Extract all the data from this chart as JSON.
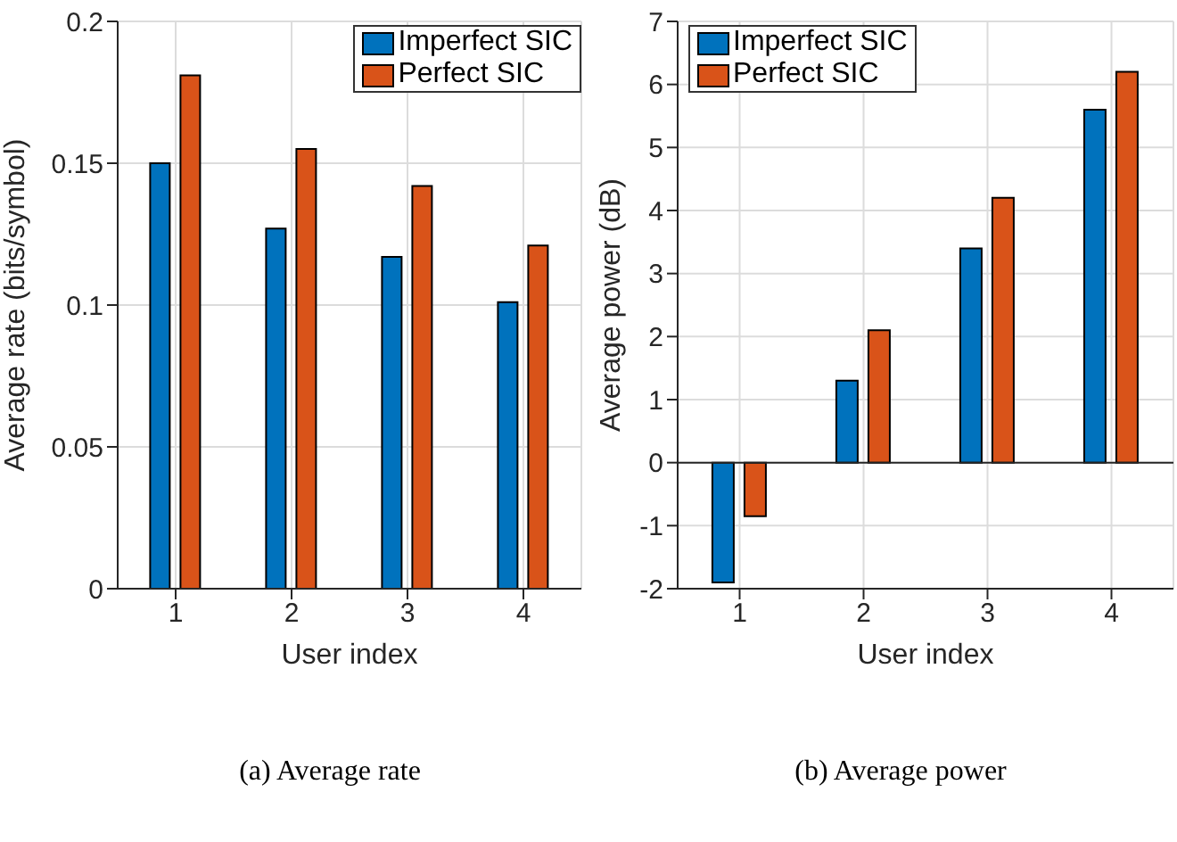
{
  "chart_data": [
    {
      "type": "bar",
      "xlabel": "User index",
      "ylabel": "Average rate (bits/symbol)",
      "categories": [
        "1",
        "2",
        "3",
        "4"
      ],
      "series": [
        {
          "name": "Imperfect SIC",
          "color": "#0072bd",
          "values": [
            0.15,
            0.127,
            0.117,
            0.101
          ]
        },
        {
          "name": "Perfect SIC",
          "color": "#d95319",
          "values": [
            0.181,
            0.155,
            0.142,
            0.121
          ]
        }
      ],
      "ylim": [
        0,
        0.2
      ],
      "yticks": [
        0,
        0.05,
        0.1,
        0.15,
        0.2
      ],
      "grid": true,
      "legend": "top right",
      "annotations": [
        "(a) Average rate"
      ]
    },
    {
      "type": "bar",
      "xlabel": "User index",
      "ylabel": "Average power (dB)",
      "categories": [
        "1",
        "2",
        "3",
        "4"
      ],
      "series": [
        {
          "name": "Imperfect SIC",
          "color": "#0072bd",
          "values": [
            -1.9,
            1.3,
            3.4,
            5.6
          ]
        },
        {
          "name": "Perfect SIC",
          "color": "#d95319",
          "values": [
            -0.85,
            2.1,
            4.2,
            6.2
          ]
        }
      ],
      "ylim": [
        -2,
        7
      ],
      "yticks": [
        -2,
        -1,
        0,
        1,
        2,
        3,
        4,
        5,
        6,
        7
      ],
      "grid": true,
      "legend": "top left",
      "annotations": [
        "(b) Average power"
      ]
    }
  ]
}
